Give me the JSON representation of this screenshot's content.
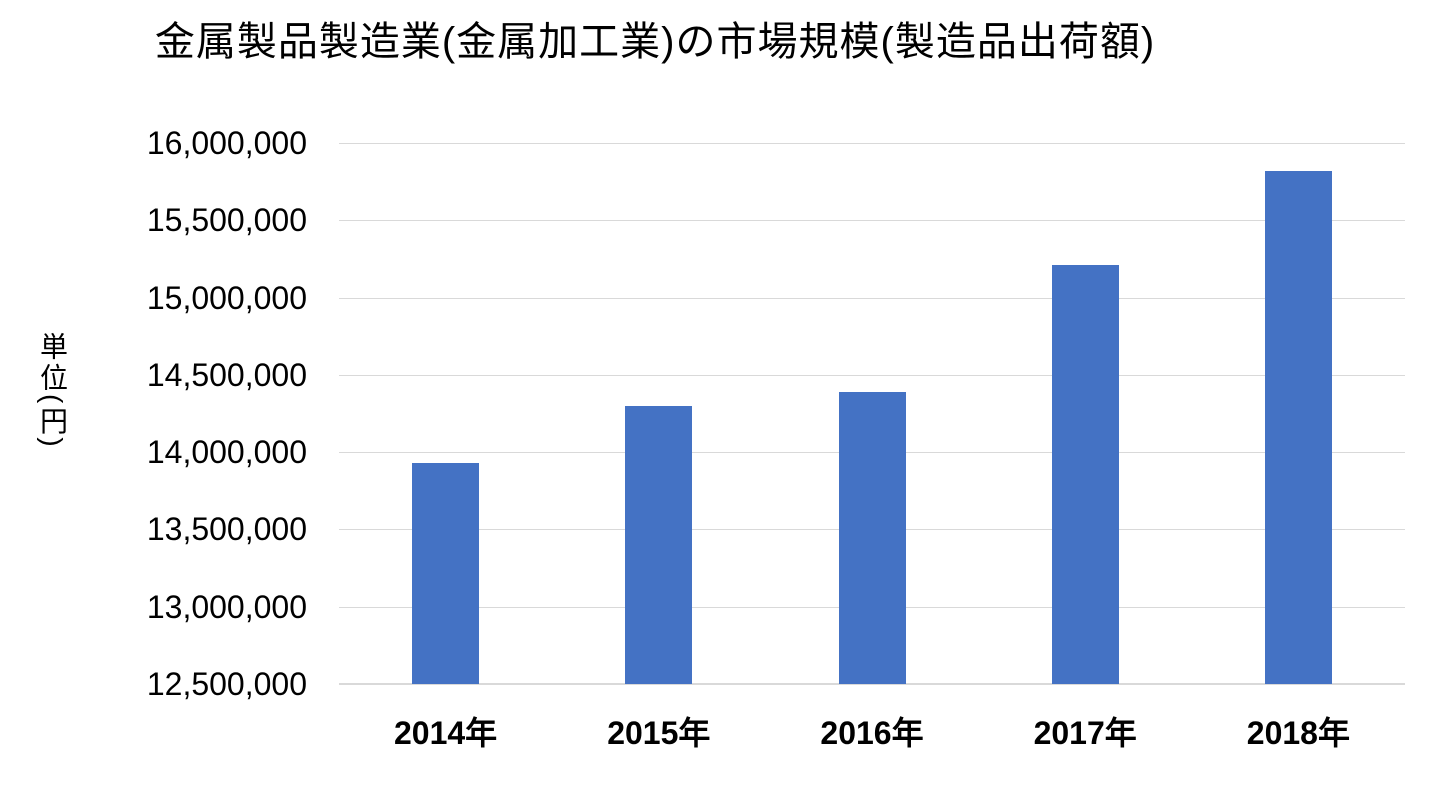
{
  "title": "金属製品製造業(金属加工業)の市場規模(製造品出荷額)",
  "colors": {
    "bar": "#4472C4",
    "gridline": "#D9D9D9",
    "axis_line": "#D9D9D9",
    "text": "#000000",
    "background": "#FFFFFF"
  },
  "y_axis": {
    "unit_label": "単位(円)",
    "tick_labels": [
      "16,000,000",
      "15,500,000",
      "15,000,000",
      "14,500,000",
      "14,000,000",
      "13,500,000",
      "13,000,000",
      "12,500,000"
    ]
  },
  "x_axis": {
    "tick_labels": [
      "2014年",
      "2015年",
      "2016年",
      "2017年",
      "2018年"
    ]
  },
  "chart_data": {
    "type": "bar",
    "title": "金属製品製造業(金属加工業)の市場規模(製造品出荷額)",
    "categories": [
      "2014年",
      "2015年",
      "2016年",
      "2017年",
      "2018年"
    ],
    "values": [
      13930000,
      14300000,
      14390000,
      15210000,
      15820000
    ],
    "xlabel": "",
    "ylabel": "単位(円)",
    "ylim": [
      12500000,
      16000000
    ],
    "ytick_interval": 500000,
    "grid": true,
    "legend": false,
    "bar_color": "#4472C4",
    "gridline_color": "#D9D9D9"
  }
}
